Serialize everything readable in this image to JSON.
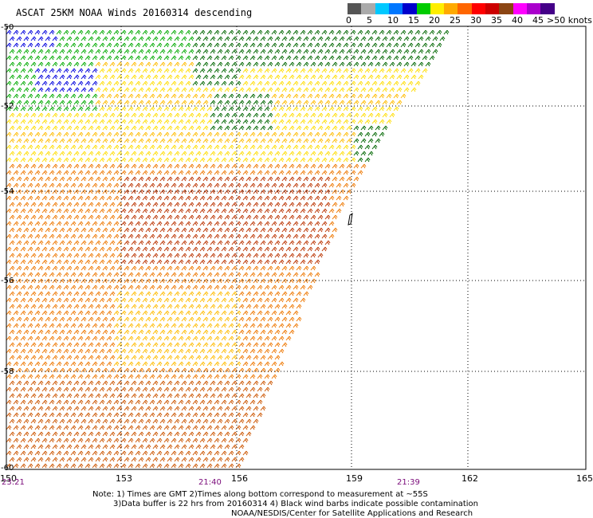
{
  "title": "ASCAT 25KM NOAA Winds 20160314 descending",
  "colorbar": {
    "colors": [
      "#555555",
      "#aaaaaa",
      "#00c8ff",
      "#0077ff",
      "#0000cc",
      "#00cc00",
      "#ffee00",
      "#ffaa00",
      "#ff6600",
      "#ff0000",
      "#cc0000",
      "#8b4513",
      "#ff00ff",
      "#aa00cc",
      "#440088"
    ],
    "labels": [
      "0",
      "5",
      "10",
      "15",
      "20",
      "25",
      "30",
      "35",
      "40",
      "45"
    ],
    "unit_label": ">50 knots"
  },
  "map": {
    "lat_labels": [
      "-50",
      "-52",
      "-54",
      "-56",
      "-58",
      "-60"
    ],
    "lon_labels": [
      "150",
      "153",
      "156",
      "159",
      "162",
      "165"
    ],
    "time_labels": [
      "23:21",
      "21:40",
      "21:39"
    ],
    "wind_colors": {
      "blue": "#0000dd",
      "green": "#00aa00",
      "dark_green": "#006600",
      "yellow": "#ffdd00",
      "gold": "#ffbb00",
      "orange": "#ee7700",
      "dark_orange": "#cc5500",
      "red_brown": "#bb3300"
    }
  },
  "notes": {
    "line1": "Note: 1) Times are GMT 2)Times along bottom correspond to measurement at ~55S",
    "line2": "3)Data buffer is 22 hrs from 20160314 4) Black wind barbs indicate possible contamination",
    "line3": "NOAA/NESDIS/Center for Satellite Applications and Research"
  }
}
